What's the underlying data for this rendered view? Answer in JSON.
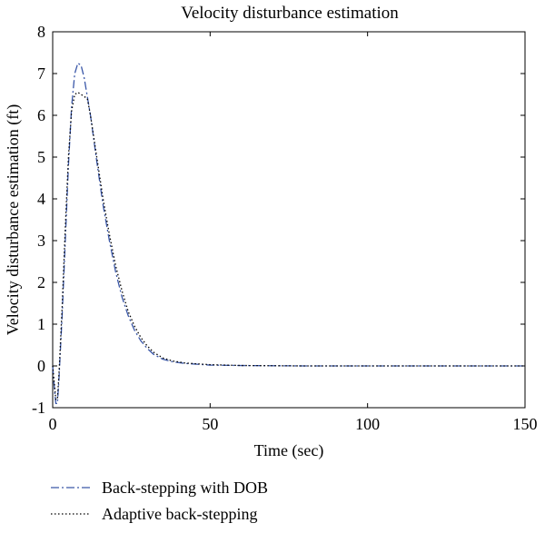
{
  "chart_data": {
    "type": "line",
    "title": "Velocity disturbance estimation",
    "xlabel": "Time (sec)",
    "ylabel": "Velocity disturbance estimation (ft)",
    "xlim": [
      0,
      150
    ],
    "ylim": [
      -1,
      8
    ],
    "xticks": [
      0,
      50,
      100,
      150
    ],
    "yticks": [
      -1,
      0,
      1,
      2,
      3,
      4,
      5,
      6,
      7,
      8
    ],
    "grid": false,
    "legend_position": "below-left",
    "series": [
      {
        "name": "Back-stepping with DOB",
        "color": "#3a57a8",
        "style": "dash-dot",
        "points": [
          [
            0,
            0
          ],
          [
            0.5,
            -0.5
          ],
          [
            1,
            -0.9
          ],
          [
            1.5,
            -0.9
          ],
          [
            2,
            -0.3
          ],
          [
            3,
            1.2
          ],
          [
            4,
            3.0
          ],
          [
            5,
            4.8
          ],
          [
            6,
            6.2
          ],
          [
            7,
            7.0
          ],
          [
            8,
            7.25
          ],
          [
            9,
            7.2
          ],
          [
            10,
            6.9
          ],
          [
            12,
            6.0
          ],
          [
            14,
            4.9
          ],
          [
            16,
            3.85
          ],
          [
            18,
            3.0
          ],
          [
            20,
            2.25
          ],
          [
            22,
            1.65
          ],
          [
            24,
            1.2
          ],
          [
            26,
            0.85
          ],
          [
            28,
            0.6
          ],
          [
            30,
            0.42
          ],
          [
            32,
            0.28
          ],
          [
            35,
            0.16
          ],
          [
            38,
            0.1
          ],
          [
            42,
            0.06
          ],
          [
            50,
            0.02
          ],
          [
            60,
            0.01
          ],
          [
            80,
            0.0
          ],
          [
            100,
            0.0
          ],
          [
            120,
            0.0
          ],
          [
            150,
            0.0
          ]
        ]
      },
      {
        "name": "Adaptive back-stepping",
        "color": "#000000",
        "style": "dotted",
        "points": [
          [
            0,
            0
          ],
          [
            0.5,
            -0.4
          ],
          [
            1,
            -0.8
          ],
          [
            1.5,
            -0.8
          ],
          [
            2,
            -0.2
          ],
          [
            3,
            1.4
          ],
          [
            4,
            3.3
          ],
          [
            5,
            5.0
          ],
          [
            6,
            6.1
          ],
          [
            7,
            6.5
          ],
          [
            8,
            6.55
          ],
          [
            9,
            6.5
          ],
          [
            10,
            6.45
          ],
          [
            11,
            6.4
          ],
          [
            12,
            6.0
          ],
          [
            14,
            5.0
          ],
          [
            16,
            4.0
          ],
          [
            18,
            3.15
          ],
          [
            20,
            2.4
          ],
          [
            22,
            1.8
          ],
          [
            24,
            1.3
          ],
          [
            26,
            0.95
          ],
          [
            28,
            0.68
          ],
          [
            30,
            0.48
          ],
          [
            32,
            0.33
          ],
          [
            35,
            0.19
          ],
          [
            38,
            0.12
          ],
          [
            42,
            0.07
          ],
          [
            50,
            0.03
          ],
          [
            60,
            0.01
          ],
          [
            80,
            0.0
          ],
          [
            100,
            0.0
          ],
          [
            120,
            0.0
          ],
          [
            150,
            0.0
          ]
        ]
      }
    ]
  }
}
